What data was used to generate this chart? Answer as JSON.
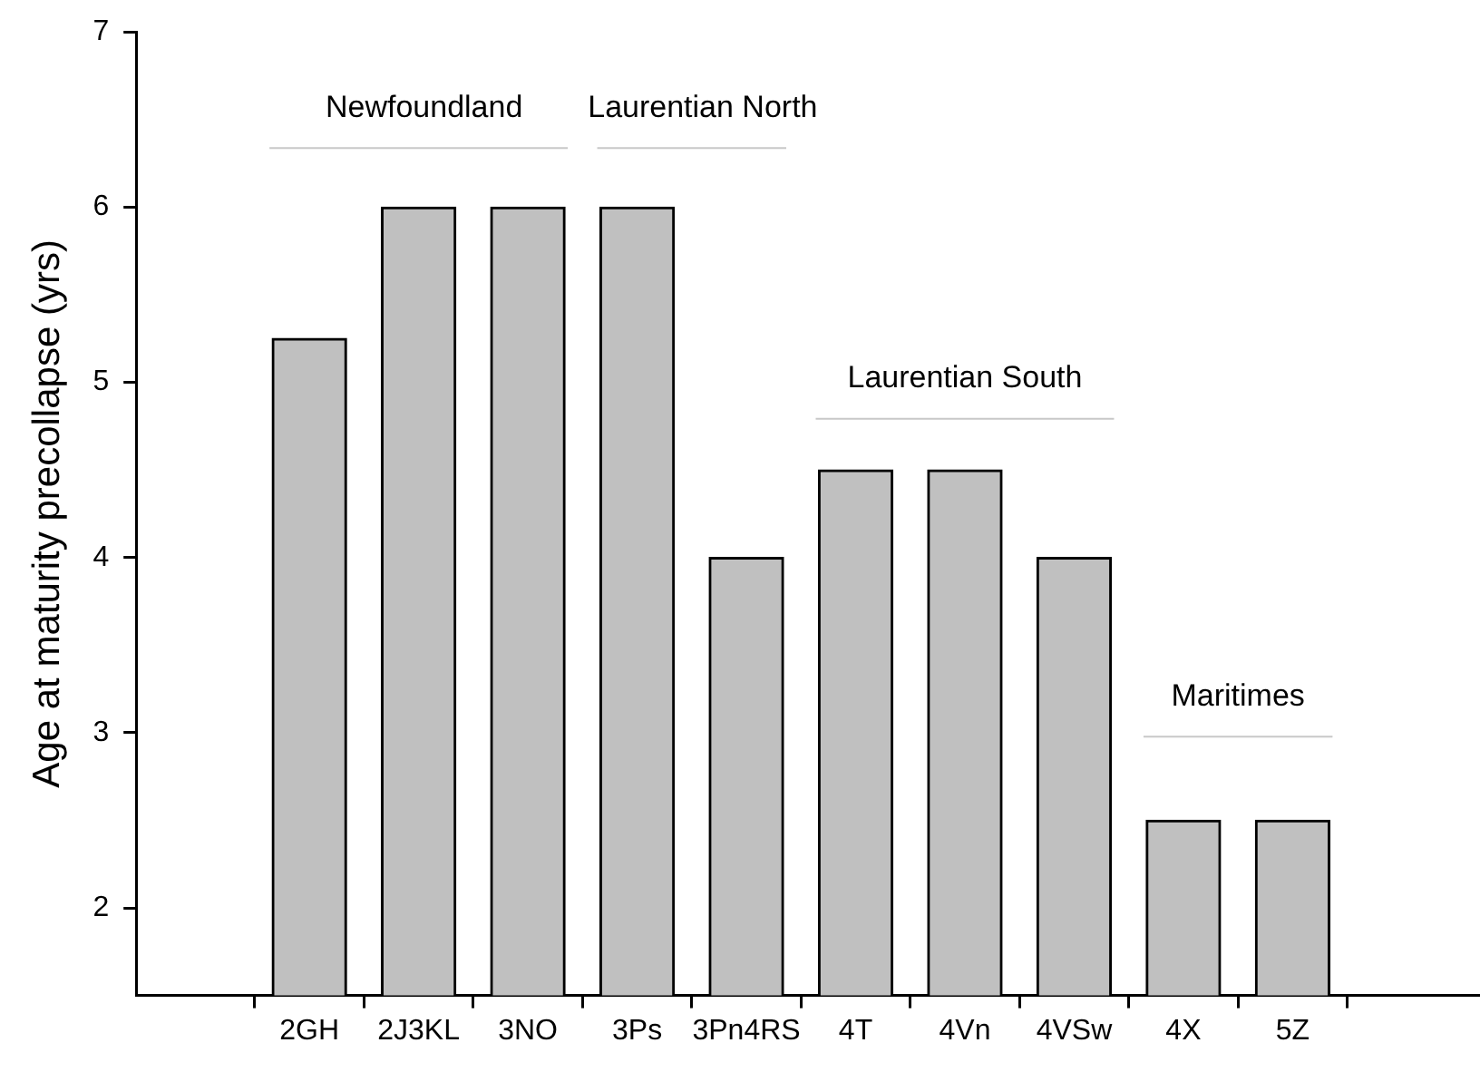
{
  "chart_data": {
    "type": "bar",
    "ylabel": "Age at maturity precollapse (yrs)",
    "categories": [
      "2GH",
      "2J3KL",
      "3NO",
      "3Ps",
      "3Pn4RS",
      "4T",
      "4Vn",
      "4VSw",
      "4X",
      "5Z"
    ],
    "values": [
      5.25,
      6,
      6,
      6,
      4,
      4.5,
      4.5,
      4,
      2.5,
      2.5
    ],
    "color": "#c0c0c0",
    "ylim": [
      1.5,
      7
    ],
    "yticks": [
      2,
      3,
      4,
      5,
      6,
      7
    ],
    "grid": false,
    "legend": false,
    "annotations": [
      "Newfoundland",
      "Laurentian North",
      "Laurentian South",
      "Maritimes"
    ]
  }
}
